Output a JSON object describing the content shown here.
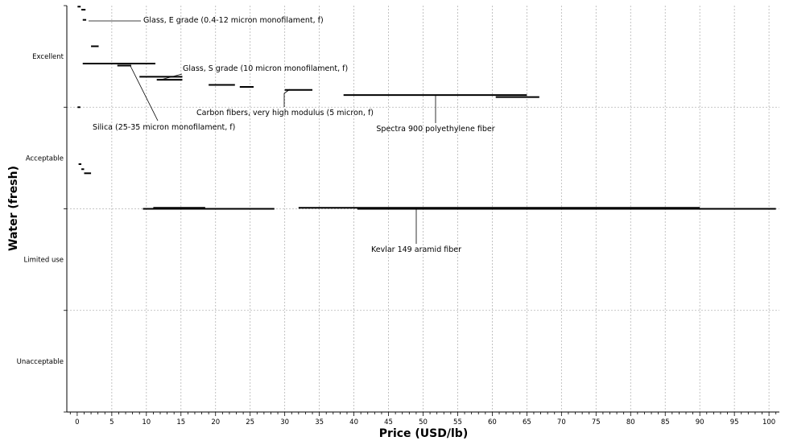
{
  "chart_data": {
    "type": "range-bar",
    "xlabel": "Price (USD/lb)",
    "ylabel": "Water (fresh)",
    "xlim": [
      -1.5,
      101.5
    ],
    "x_ticks": [
      0,
      5,
      10,
      15,
      20,
      25,
      30,
      35,
      40,
      45,
      50,
      55,
      60,
      65,
      70,
      75,
      80,
      85,
      90,
      95,
      100
    ],
    "y_categories": [
      "Excellent",
      "Acceptable",
      "Limited use",
      "Unacceptable"
    ],
    "grid": true,
    "segments": [
      {
        "x0": 0.05,
        "x1": 0.5,
        "y": 3.99
      },
      {
        "x0": 0.6,
        "x1": 1.2,
        "y": 3.96
      },
      {
        "x0": 0.8,
        "x1": 1.3,
        "y": 3.86
      },
      {
        "x0": 2.0,
        "x1": 3.1,
        "y": 3.6
      },
      {
        "x0": 0.8,
        "x1": 11.3,
        "y": 3.43
      },
      {
        "x0": 5.8,
        "x1": 7.8,
        "y": 3.41
      },
      {
        "x0": 9.0,
        "x1": 15.2,
        "y": 3.3
      },
      {
        "x0": 11.5,
        "x1": 15.2,
        "y": 3.27
      },
      {
        "x0": 19.0,
        "x1": 22.8,
        "y": 3.22
      },
      {
        "x0": 23.5,
        "x1": 25.5,
        "y": 3.2
      },
      {
        "x0": 30.0,
        "x1": 34.0,
        "y": 3.17
      },
      {
        "x0": 38.5,
        "x1": 65.0,
        "y": 3.12
      },
      {
        "x0": 60.5,
        "x1": 66.8,
        "y": 3.1
      },
      {
        "x0": 0.05,
        "x1": 0.45,
        "y": 3.0
      },
      {
        "x0": 0.2,
        "x1": 0.6,
        "y": 2.44
      },
      {
        "x0": 0.6,
        "x1": 1.0,
        "y": 2.39
      },
      {
        "x0": 1.0,
        "x1": 2.0,
        "y": 2.35
      },
      {
        "x0": 9.5,
        "x1": 28.5,
        "y": 2.0
      },
      {
        "x0": 11.0,
        "x1": 18.5,
        "y": 2.01
      },
      {
        "x0": 32.0,
        "x1": 90.0,
        "y": 2.01
      },
      {
        "x0": 40.5,
        "x1": 101.0,
        "y": 2.0
      }
    ],
    "annotations": [
      {
        "text": "Glass, E grade (0.4-12 micron monofilament, f)",
        "x": 1.1,
        "y": 3.86
      },
      {
        "text": "Glass, S grade (10 micron monofilament, f)",
        "x": 13.0,
        "y": 3.27
      },
      {
        "text": "Carbon fibers, very high modulus (5 micron, f)",
        "x": 30.0,
        "y": 3.17
      },
      {
        "text": "Silica (25-35 micron monofilament, f)",
        "x": 6.5,
        "y": 3.41
      },
      {
        "text": "Spectra 900 polyethylene fiber",
        "x": 51.5,
        "y": 3.12
      },
      {
        "text": "Kevlar 149 aramid fiber",
        "x": 49.0,
        "y": 2.0
      }
    ]
  }
}
